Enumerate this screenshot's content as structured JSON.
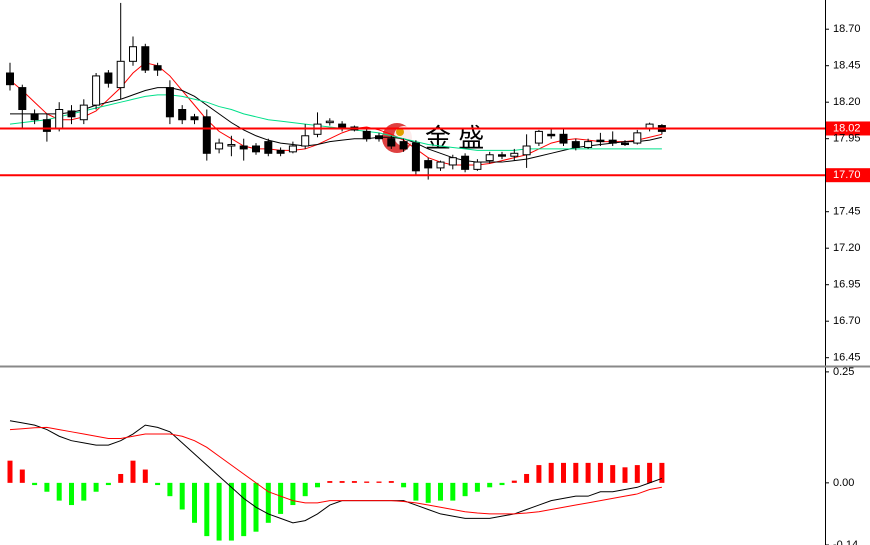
{
  "chart_data": [
    {
      "type": "candlestick",
      "open": [
        18.4,
        18.3,
        18.12,
        18.08,
        18.02,
        18.14,
        18.08,
        18.18,
        18.4,
        18.3,
        18.48,
        18.58,
        18.45,
        18.3,
        18.15,
        18.1,
        18.1,
        17.88,
        17.9,
        17.9,
        17.9,
        17.93,
        17.87,
        17.86,
        17.9,
        17.98,
        18.06,
        18.05,
        18.03,
        18.0,
        17.97,
        17.95,
        17.93,
        17.92,
        17.8,
        17.75,
        17.77,
        17.83,
        17.74,
        17.8,
        17.84,
        17.83,
        17.84,
        17.92,
        17.98,
        17.98,
        17.93,
        17.89,
        17.94,
        17.94,
        17.92,
        17.92,
        18.02,
        18.04
      ],
      "high": [
        18.47,
        18.32,
        18.15,
        18.12,
        18.2,
        18.18,
        18.22,
        18.4,
        18.42,
        18.88,
        18.65,
        18.6,
        18.47,
        18.35,
        18.18,
        18.12,
        18.15,
        17.95,
        17.97,
        17.95,
        17.92,
        17.95,
        17.89,
        17.93,
        18.05,
        18.13,
        18.09,
        18.07,
        18.04,
        18.02,
        17.99,
        17.97,
        17.95,
        17.94,
        17.82,
        17.8,
        17.84,
        17.85,
        17.81,
        17.86,
        17.86,
        17.88,
        17.98,
        18.01,
        18.02,
        18.02,
        17.95,
        17.95,
        17.99,
        18.0,
        17.94,
        18.01,
        18.06,
        18.05
      ],
      "low": [
        18.28,
        18.02,
        18.05,
        17.93,
        18.0,
        18.05,
        18.05,
        18.15,
        18.3,
        18.22,
        18.45,
        18.4,
        18.38,
        18.05,
        18.05,
        18.05,
        17.8,
        17.85,
        17.83,
        17.8,
        17.84,
        17.83,
        17.83,
        17.85,
        17.88,
        17.96,
        18.04,
        18.0,
        18.0,
        17.93,
        17.93,
        17.88,
        17.86,
        17.7,
        17.67,
        17.73,
        17.74,
        17.72,
        17.73,
        17.78,
        17.81,
        17.8,
        17.75,
        17.9,
        17.95,
        17.9,
        17.87,
        17.88,
        17.9,
        17.9,
        17.9,
        17.91,
        18.0,
        17.98
      ],
      "close": [
        18.32,
        18.15,
        18.08,
        18.0,
        18.15,
        18.1,
        18.18,
        18.38,
        18.33,
        18.48,
        18.58,
        18.42,
        18.42,
        18.1,
        18.08,
        18.08,
        17.85,
        17.92,
        17.91,
        17.88,
        17.86,
        17.85,
        17.85,
        17.9,
        17.97,
        18.05,
        18.07,
        18.02,
        18.01,
        17.95,
        17.95,
        17.9,
        17.88,
        17.73,
        17.75,
        17.79,
        17.82,
        17.74,
        17.79,
        17.84,
        17.83,
        17.85,
        17.9,
        18.0,
        17.97,
        17.92,
        17.89,
        17.93,
        17.93,
        17.92,
        17.91,
        17.99,
        18.05,
        18.0
      ],
      "up_color": "#ffffff",
      "down_color": "#000000",
      "series": [
        {
          "type": "line",
          "color": "#ff0000",
          "values": [
            18.35,
            18.28,
            18.2,
            18.12,
            18.08,
            18.08,
            18.1,
            18.14,
            18.22,
            18.3,
            18.4,
            18.47,
            18.45,
            18.38,
            18.28,
            18.18,
            18.08,
            18.0,
            17.95,
            17.9,
            17.88,
            17.88,
            17.87,
            17.87,
            17.88,
            17.91,
            17.95,
            17.99,
            18.02,
            18.03,
            18.01,
            17.98,
            17.94,
            17.88,
            17.82,
            17.79,
            17.77,
            17.77,
            17.77,
            17.78,
            17.8,
            17.82,
            17.84,
            17.88,
            17.92,
            17.94,
            17.95,
            17.94,
            17.93,
            17.93,
            17.93,
            17.94,
            17.96,
            17.98
          ]
        },
        {
          "type": "line",
          "color": "#000000",
          "values": [
            18.12,
            18.12,
            18.12,
            18.12,
            18.12,
            18.13,
            18.15,
            18.18,
            18.2,
            18.22,
            18.25,
            18.28,
            18.3,
            18.3,
            18.28,
            18.24,
            18.18,
            18.12,
            18.06,
            18.01,
            17.97,
            17.94,
            17.92,
            17.91,
            17.9,
            17.91,
            17.93,
            17.94,
            17.95,
            17.95,
            17.96,
            17.96,
            17.95,
            17.92,
            17.88,
            17.85,
            17.82,
            17.8,
            17.79,
            17.79,
            17.79,
            17.8,
            17.81,
            17.83,
            17.85,
            17.87,
            17.89,
            17.9,
            17.91,
            17.92,
            17.93,
            17.93,
            17.94,
            17.96
          ]
        },
        {
          "type": "line",
          "color": "#00e08a",
          "values": [
            18.05,
            18.06,
            18.07,
            18.08,
            18.1,
            18.12,
            18.14,
            18.16,
            18.18,
            18.2,
            18.22,
            18.24,
            18.25,
            18.25,
            18.24,
            18.22,
            18.2,
            18.17,
            18.15,
            18.12,
            18.1,
            18.08,
            18.07,
            18.06,
            18.05,
            18.04,
            18.03,
            18.02,
            18.01,
            18.0,
            17.99,
            17.97,
            17.95,
            17.93,
            17.91,
            17.9,
            17.89,
            17.88,
            17.87,
            17.87,
            17.87,
            17.87,
            17.88,
            17.88,
            17.88,
            17.88,
            17.88,
            17.88,
            17.88,
            17.88,
            17.88,
            17.88,
            17.88,
            17.88
          ]
        }
      ],
      "levels": [
        18.02,
        {
          "value": 17.7,
          "label": "17.70"
        }
      ],
      "level_color": "#ff0000",
      "ylim": [
        16.4,
        18.9
      ],
      "yticks": [
        {
          "value": 18.7,
          "label": "18.70"
        },
        18.45,
        {
          "value": 18.2,
          "label": "18.20"
        },
        17.95,
        17.45,
        {
          "value": 17.2,
          "label": "17.20"
        },
        16.95,
        {
          "value": 16.7,
          "label": "16.70"
        },
        16.45
      ],
      "watermark": "金 盛"
    },
    {
      "type": "macd",
      "histogram": [
        0.05,
        0.03,
        -0.005,
        -0.02,
        -0.04,
        -0.05,
        -0.04,
        -0.02,
        -0.005,
        0.02,
        0.05,
        0.03,
        -0.005,
        -0.03,
        -0.06,
        -0.09,
        -0.12,
        -0.13,
        -0.13,
        -0.12,
        -0.11,
        -0.09,
        -0.07,
        -0.05,
        -0.03,
        -0.01,
        0.004,
        0.004,
        0.004,
        0.003,
        0.003,
        0.004,
        -0.01,
        -0.04,
        -0.045,
        -0.04,
        -0.04,
        -0.03,
        -0.02,
        -0.01,
        -0.005,
        0.005,
        0.02,
        0.04,
        0.045,
        0.045,
        0.045,
        0.045,
        0.045,
        0.04,
        0.035,
        0.04,
        0.045,
        0.045
      ],
      "positive_color": "#ff0000",
      "negative_color": "#00ff00",
      "series": [
        {
          "type": "line",
          "color": "#000000",
          "values": [
            0.14,
            0.135,
            0.13,
            0.12,
            0.105,
            0.095,
            0.09,
            0.085,
            0.085,
            0.095,
            0.11,
            0.13,
            0.125,
            0.115,
            0.09,
            0.065,
            0.04,
            0.015,
            -0.01,
            -0.035,
            -0.055,
            -0.07,
            -0.08,
            -0.09,
            -0.085,
            -0.07,
            -0.05,
            -0.04,
            -0.04,
            -0.04,
            -0.04,
            -0.04,
            -0.04,
            -0.05,
            -0.06,
            -0.07,
            -0.075,
            -0.08,
            -0.08,
            -0.08,
            -0.075,
            -0.07,
            -0.06,
            -0.05,
            -0.04,
            -0.035,
            -0.03,
            -0.03,
            -0.02,
            -0.02,
            -0.015,
            -0.01,
            0.0,
            0.01
          ]
        },
        {
          "type": "line",
          "color": "#ff0000",
          "values": [
            0.12,
            0.122,
            0.124,
            0.125,
            0.12,
            0.115,
            0.11,
            0.105,
            0.1,
            0.1,
            0.105,
            0.11,
            0.11,
            0.11,
            0.105,
            0.095,
            0.08,
            0.06,
            0.04,
            0.02,
            0.0,
            -0.02,
            -0.03,
            -0.04,
            -0.045,
            -0.045,
            -0.04,
            -0.04,
            -0.04,
            -0.04,
            -0.04,
            -0.04,
            -0.042,
            -0.045,
            -0.05,
            -0.055,
            -0.06,
            -0.065,
            -0.068,
            -0.07,
            -0.07,
            -0.07,
            -0.068,
            -0.065,
            -0.06,
            -0.055,
            -0.05,
            -0.045,
            -0.04,
            -0.035,
            -0.03,
            -0.025,
            -0.015,
            -0.01
          ]
        }
      ],
      "ylim": [
        -0.14,
        0.27
      ],
      "yticks": [
        0.25,
        {
          "value": 0,
          "label": "0.00"
        },
        -0.14
      ]
    }
  ]
}
